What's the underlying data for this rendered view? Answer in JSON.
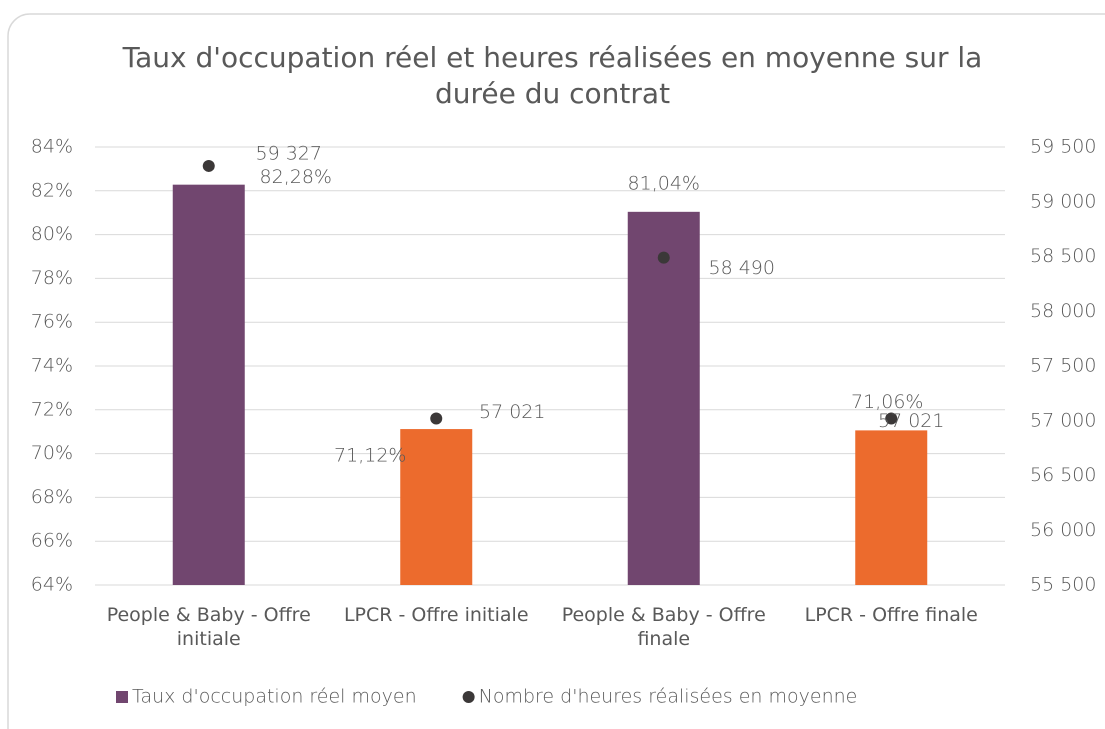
{
  "chart_data": {
    "type": "bar",
    "title": "Taux d'occupation réel et heures réalisées en moyenne sur la durée du contrat",
    "categories": [
      "People & Baby - Offre initiale",
      "LPCR - Offre initiale",
      "People & Baby - Offre finale",
      "LPCR - Offre finale"
    ],
    "series": [
      {
        "name": "Taux d'occupation réel moyen",
        "type": "bar",
        "color": "#71466f",
        "colors": [
          "#71466f",
          "#ec6b2d",
          "#71466f",
          "#ec6b2d"
        ],
        "values": [
          82.28,
          71.12,
          81.04,
          71.06
        ],
        "value_labels": [
          "82,28%",
          "71,12%",
          "81,04%",
          "71,06%"
        ]
      },
      {
        "name": "Nombre d'heures réalisées en moyenne",
        "type": "scatter",
        "axis": "y2",
        "color": "#3b3838",
        "values": [
          59327,
          57021,
          58490,
          57021
        ],
        "value_labels": [
          "59 327",
          "57 021",
          "58 490",
          "57 021"
        ]
      }
    ],
    "ylim": [
      64,
      84
    ],
    "yticks": [
      {
        "value": 64,
        "label": "64%"
      },
      {
        "value": 66,
        "label": "66%"
      },
      {
        "value": 68,
        "label": "68%"
      },
      {
        "value": 70,
        "label": "70%"
      },
      {
        "value": 72,
        "label": "72%"
      },
      {
        "value": 74,
        "label": "74%"
      },
      {
        "value": 76,
        "label": "76%"
      },
      {
        "value": 78,
        "label": "78%"
      },
      {
        "value": 80,
        "label": "80%"
      },
      {
        "value": 82,
        "label": "82%"
      },
      {
        "value": 84,
        "label": "84%"
      }
    ],
    "y2lim": [
      55500,
      59500
    ],
    "y2ticks": [
      {
        "value": 55500,
        "label": "55 500"
      },
      {
        "value": 56000,
        "label": "56 000"
      },
      {
        "value": 56500,
        "label": "56 500"
      },
      {
        "value": 57000,
        "label": "57 000"
      },
      {
        "value": 57500,
        "label": "57 500"
      },
      {
        "value": 58000,
        "label": "58 000"
      },
      {
        "value": 58500,
        "label": "58 500"
      },
      {
        "value": 59000,
        "label": "59 000"
      },
      {
        "value": 59500,
        "label": "59 500"
      }
    ],
    "grid": true,
    "legend": "bottom"
  }
}
